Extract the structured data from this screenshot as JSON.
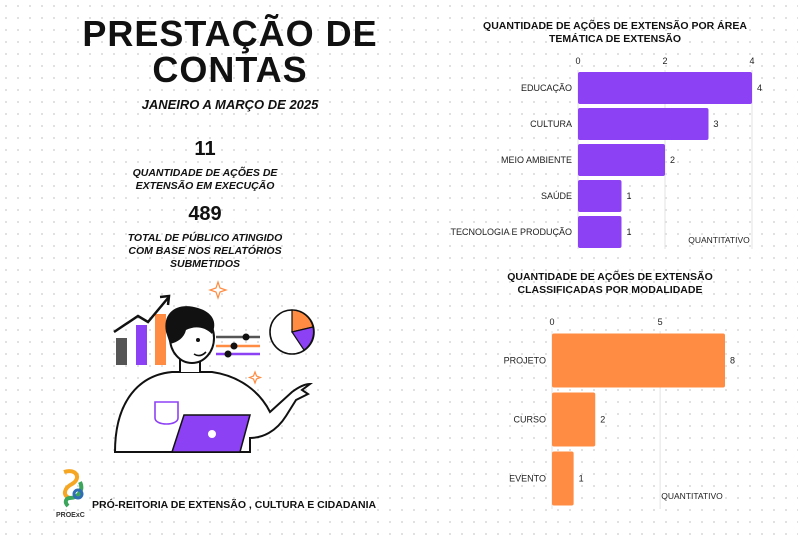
{
  "header": {
    "title": "PRESTAÇÃO  DE\nCONTAS",
    "period": "JANEIRO A MARÇO DE 2025"
  },
  "stats": [
    {
      "value": "11",
      "label": "QUANTIDADE DE AÇÕES DE\nEXTENSÃO EM EXECUÇÃO"
    },
    {
      "value": "489",
      "label": "TOTAL DE PÚBLICO ATINGIDO\nCOM BASE NOS RELATÓRIOS\nSUBMETIDOS"
    }
  ],
  "footer": {
    "org_name": "PRÓ-REITORIA DE EXTENSÃO , CULTURA E CIDADANIA",
    "logo_text": "PROExC"
  },
  "colors": {
    "purple": "#8d41f5",
    "orange": "#ff8c42"
  },
  "chart_data": [
    {
      "type": "bar",
      "orientation": "horizontal",
      "title": "QUANTIDADE DE AÇÕES DE EXTENSÃO POR ÁREA\nTEMÁTICA DE EXTENSÃO",
      "categories": [
        "EDUCAÇÃO",
        "CULTURA",
        "MEIO AMBIENTE",
        "SAÚDE",
        "TECNOLOGIA E PRODUÇÃO"
      ],
      "values": [
        4,
        3,
        2,
        1,
        1
      ],
      "xlim": [
        0,
        4
      ],
      "xticks": [
        0,
        2,
        4
      ],
      "xlabel": "QUANTITATIVO",
      "color": "#8d41f5",
      "grid": true
    },
    {
      "type": "bar",
      "orientation": "horizontal",
      "title": "QUANTIDADE DE AÇÕES DE EXTENSÃO\nCLASSIFICADAS POR MODALIDADE",
      "categories": [
        "PROJETO",
        "CURSO",
        "EVENTO"
      ],
      "values": [
        8,
        2,
        1
      ],
      "xlim": [
        0,
        8
      ],
      "xticks": [
        0,
        5
      ],
      "xlabel": "QUANTITATIVO",
      "color": "#ff8c42",
      "grid": true
    }
  ]
}
